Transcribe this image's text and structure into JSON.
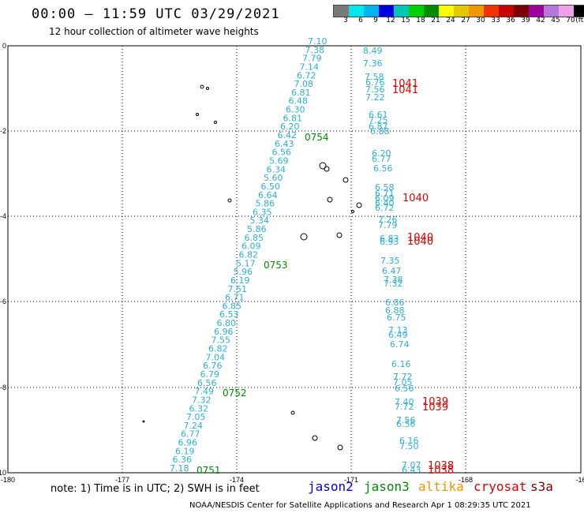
{
  "header": {
    "title": "00:00 – 11:59 UTC 03/29/2021",
    "subtitle": "12 hour collection of altimeter wave heights"
  },
  "colorbar": {
    "colors": [
      "#7a7a7a",
      "#00e8e8",
      "#00b4f0",
      "#0000e0",
      "#00c8b4",
      "#00d200",
      "#008c00",
      "#fafa00",
      "#e6c800",
      "#f09600",
      "#f03200",
      "#c80000",
      "#7a0000",
      "#a000a0",
      "#b478dc",
      "#f0a0e6",
      "#000000"
    ],
    "labels": [
      "3",
      "6",
      "9",
      "12",
      "15",
      "18",
      "21",
      "24",
      "27",
      "30",
      "33",
      "36",
      "39",
      "42",
      "45",
      "70",
      "(ft)"
    ]
  },
  "axes": {
    "x_ticks": [
      "-180",
      "-177",
      "-174",
      "-171",
      "-168",
      "-16"
    ],
    "y_ticks": [
      "0",
      "-2",
      "-4",
      "-6",
      "-8",
      "-10"
    ]
  },
  "tracks": {
    "jason3_swh": [
      "7.10",
      "7.38",
      "7.79",
      "7.14",
      "6.72",
      "7.08",
      "6.81",
      "6.48",
      "6.30",
      "6.81",
      "6.20",
      "6.42",
      "6.43",
      "6.56",
      "5.69",
      "6.34",
      "5.60",
      "6.50",
      "6.64",
      "5.86",
      "6.35",
      "5.34",
      "5.86",
      "6.85",
      "6.09",
      "6.82",
      "5.17",
      "5.96",
      "6.19",
      "7.51",
      "6.71",
      "6.85",
      "6.53",
      "6.80",
      "6.96",
      "7.55",
      "6.82",
      "7.04",
      "6.76",
      "6.79",
      "6.56",
      "7.49",
      "7.32",
      "6.32",
      "7.05",
      "7.24",
      "6.77",
      "6.96",
      "6.19",
      "6.36",
      "7.18"
    ],
    "jason3_times": [
      "0754",
      "0753",
      "0752",
      "0751"
    ],
    "east_swh": [
      "8.49",
      "7.36",
      "7.58",
      "6.76",
      "7.56",
      "7.22",
      "6.61",
      "7.25",
      "6.87",
      "6.88",
      "6.20",
      "6.77",
      "6.56",
      "6.58",
      "6.71",
      "6.09",
      "6.40",
      "6.72",
      "7.26",
      "7.79",
      "6.83",
      "6.93",
      "7.35",
      "6.47",
      "7.38",
      "7.32",
      "6.86",
      "6.88",
      "6.75",
      "7.13",
      "6.49",
      "6.74",
      "6.16",
      "7.72",
      "7.05",
      "6.56",
      "7.40",
      "7.72",
      "7.56",
      "6.56",
      "6.16",
      "7.50",
      "7.07",
      "6.43"
    ],
    "cryosat_times": [
      "1041",
      "1041",
      "1040",
      "1040",
      "1040",
      "1039",
      "1039",
      "1038",
      "1038"
    ]
  },
  "footer": {
    "note": "note: 1) Time is in UTC; 2) SWH is in feet",
    "satellites": [
      {
        "name": "jason2",
        "color": "#0000e0"
      },
      {
        "name": "jason3",
        "color": "#008c00"
      },
      {
        "name": "altika",
        "color": "#f09600"
      },
      {
        "name": "cryosat",
        "color": "#e00000"
      },
      {
        "name": "s3a",
        "color": "#7a0000"
      }
    ],
    "credit": "NOAA/NESDIS Center for Satellite Applications and Research    Apr  1 08:29:35 UTC 2021"
  }
}
